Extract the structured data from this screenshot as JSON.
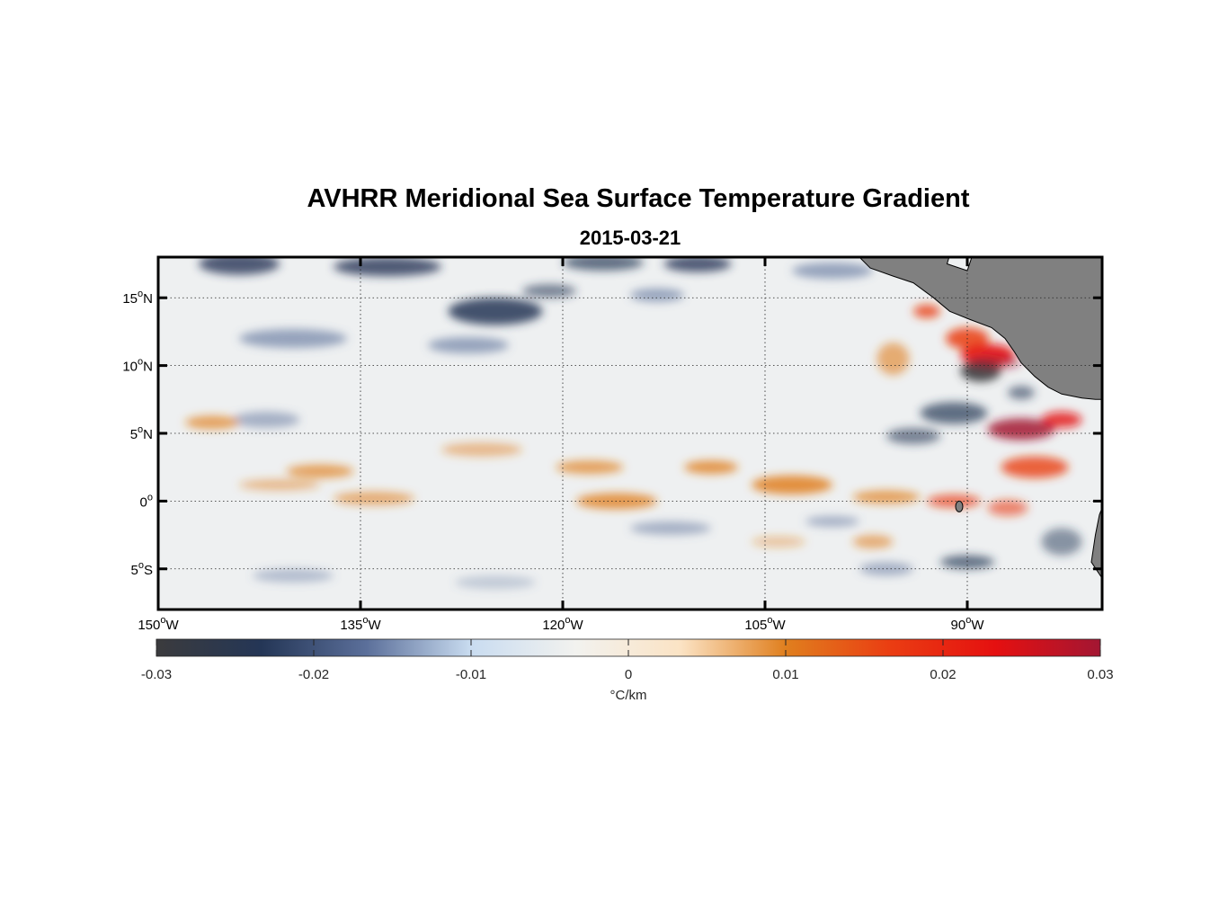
{
  "title": "AVHRR Meridional Sea Surface Temperature Gradient",
  "subtitle": "2015-03-21",
  "map": {
    "lon_range": [
      -150,
      -80
    ],
    "lat_range": [
      -8,
      18
    ],
    "lon_ticks": [
      {
        "value": -150,
        "num": "150",
        "hemi": "W"
      },
      {
        "value": -135,
        "num": "135",
        "hemi": "W"
      },
      {
        "value": -120,
        "num": "120",
        "hemi": "W"
      },
      {
        "value": -105,
        "num": "105",
        "hemi": "W"
      },
      {
        "value": -90,
        "num": "90",
        "hemi": "W"
      }
    ],
    "lat_ticks": [
      {
        "value": 15,
        "num": "15",
        "hemi": "N"
      },
      {
        "value": 10,
        "num": "10",
        "hemi": "N"
      },
      {
        "value": 5,
        "num": "5",
        "hemi": "N"
      },
      {
        "value": 0,
        "num": "0",
        "hemi": ""
      },
      {
        "value": -5,
        "num": "5",
        "hemi": "S"
      }
    ],
    "degree_symbol": "o",
    "land_color": "#808080",
    "grid": true
  },
  "colorbar": {
    "ticks": [
      "-0.03",
      "-0.02",
      "-0.01",
      "0",
      "0.01",
      "0.02",
      "0.03"
    ],
    "unit_label": "°C/km",
    "range": [
      -0.03,
      0.03
    ],
    "colors": [
      "#3b3b3d",
      "#243656",
      "#5b6f9a",
      "#c9dcf0",
      "#f2f2ef",
      "#fbe3c4",
      "#e07f1e",
      "#ea3d12",
      "#e51010",
      "#a31633"
    ]
  }
}
